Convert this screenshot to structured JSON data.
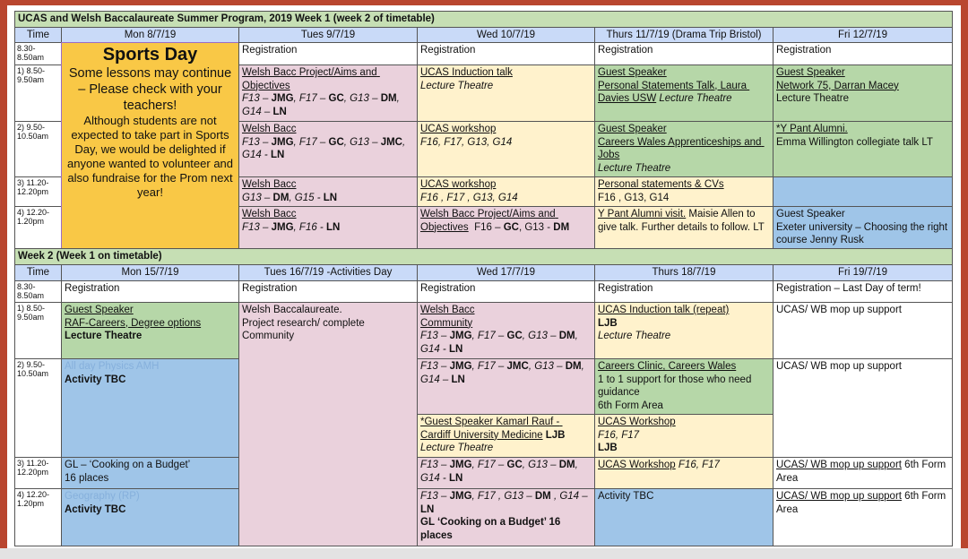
{
  "title": "UCAS and Welsh Baccalaureate Summer Program, 2019 Week 1 (week 2 of timetable)",
  "week1": {
    "headers": [
      "Time",
      "Mon 8/7/19",
      "Tues 9/7/19",
      "Wed 10/7/19",
      "Thurs 11/7/19 (Drama Trip Bristol)",
      "Fri 12/7/19"
    ],
    "times": [
      "8.30- 8.50am",
      "1) 8.50- 9.50am",
      "2) 9.50- 10.50am",
      "3) 11.20- 12.20pm",
      "4) 12.20- 1.20pm"
    ],
    "cells": {
      "mon": [
        "Sports Day",
        "Some lessons may continue – Please check with your teachers!",
        "Although students are not expected to take part in Sports Day, we would be delighted if anyone wanted to volunteer and also fundraise for the Prom next year!"
      ],
      "tue0": [
        "Registration"
      ],
      "wed0": [
        "Registration"
      ],
      "thu0": [
        "Registration"
      ],
      "fri0": [
        "Registration"
      ],
      "tue1": [
        "Welsh Bacc Project/Aims and Objectives",
        [
          "F13 – ",
          "JMG",
          ", F17 – ",
          "GC",
          ", G13 – ",
          "DM",
          ", G14 – ",
          "LN"
        ]
      ],
      "wed1": [
        "UCAS Induction talk",
        "Lecture Theatre"
      ],
      "thu1": [
        "Guest Speaker",
        [
          "Personal Statements Talk, Laura Davies USW",
          " Lecture Theatre"
        ]
      ],
      "fri1": [
        "Guest Speaker",
        "Network 75, Darran Macey",
        "Lecture Theatre"
      ],
      "tue2": [
        "Welsh Bacc",
        [
          "F13 – ",
          "JMG",
          ", F17 – ",
          "GC",
          ", G13 – ",
          "JMC",
          ", G14 - ",
          "LN"
        ]
      ],
      "wed2": [
        "UCAS workshop",
        "F16, F17, G13, G14"
      ],
      "thu2": [
        "Guest Speaker",
        "Careers Wales Apprenticeships and Jobs",
        "Lecture Theatre"
      ],
      "fri2": [
        "*Y Pant Alumni.",
        "Emma Willington collegiate talk LT"
      ],
      "tue3": [
        "Welsh Bacc",
        [
          "G13 – ",
          "DM",
          ", G15 - ",
          "LN"
        ]
      ],
      "wed3": [
        "UCAS workshop",
        "F16 , F17 , G13, G14"
      ],
      "thu3": [
        "Personal statements & CVs",
        "F16 , G13, G14"
      ],
      "tue4": [
        "Welsh Bacc",
        [
          "F13 – ",
          "JMG",
          ", F16 - ",
          "LN"
        ]
      ],
      "wed4": [
        [
          "Welsh Bacc Project/Aims and Objectives",
          "  F16 – ",
          "GC",
          ", G13 - ",
          "DM"
        ]
      ],
      "thu4": [
        [
          "Y Pant Alumni visit.",
          " Maisie Allen to give talk. Further details to follow. LT"
        ]
      ],
      "fri4": [
        "Guest Speaker",
        "Exeter university – Choosing the right course Jenny Rusk"
      ]
    }
  },
  "week2": {
    "title": "Week 2 (Week 1 on timetable)",
    "headers": [
      "Time",
      "Mon 15/7/19",
      "Tues 16/7/19 -Activities Day",
      "Wed 17/7/19",
      "Thurs 18/7/19",
      "Fri 19/7/19"
    ],
    "times": [
      "8.30- 8.50am",
      "1) 8.50- 9.50am",
      "2) 9.50- 10.50am",
      "3) 11.20- 12.20pm",
      "4) 12.20- 1.20pm"
    ],
    "cells": {
      "mon0": [
        "Registration"
      ],
      "tue0": [
        "Registration"
      ],
      "wed0": [
        "Registration"
      ],
      "thu0": [
        "Registration"
      ],
      "fri0": [
        "Registration – Last Day of term!"
      ],
      "mon1": [
        "Guest Speaker",
        "RAF-Careers, Degree options",
        "Lecture Theatre"
      ],
      "tue": [
        "Welsh Baccalaureate.",
        "Project research/ complete Community"
      ],
      "wed1": [
        "Welsh Bacc",
        "Community",
        [
          "F13 – ",
          "JMG",
          ", F17 – ",
          "GC",
          ", G13 – ",
          "DM",
          ", G14 - ",
          "LN"
        ]
      ],
      "thu1": [
        "UCAS Induction talk (repeat)",
        "LJB",
        "Lecture Theatre"
      ],
      "fri1": [
        "UCAS/ WB mop up support"
      ],
      "mon2": [
        "All day Physics AMH",
        "Activity TBC"
      ],
      "wed2a": [
        [
          "F13 – ",
          "JMG",
          ", F17 – ",
          "JMC",
          ", G13 – ",
          "DM",
          ", G14 – ",
          "LN"
        ]
      ],
      "wed2b": [
        [
          "*Guest Speaker Kamarl Rauf - Cardiff University Medicine",
          " LJB"
        ],
        "Lecture Theatre"
      ],
      "thu2a": [
        "Careers Clinic, Careers Wales",
        "1 to 1 support for those who need guidance",
        "6th Form Area"
      ],
      "thu2b": [
        "UCAS Workshop",
        "F16, F17",
        "LJB"
      ],
      "fri2": [
        "UCAS/ WB mop up support"
      ],
      "mon3": [
        "GL – ‘Cooking on a Budget’",
        "16 places"
      ],
      "wed3": [
        [
          "F13 – ",
          "JMG",
          ", F17 – ",
          "GC",
          ", G13 – ",
          "DM",
          ", G14 - ",
          "LN"
        ]
      ],
      "thu3": [
        [
          "UCAS Workshop",
          " F16, F17"
        ]
      ],
      "fri3": [
        [
          "UCAS/ WB mop up support",
          " 6th Form Area"
        ]
      ],
      "mon4": [
        "Geography (RP)",
        "Activity TBC"
      ],
      "wed4": [
        [
          "F13 – ",
          "JMG",
          ", F17 , G13 – ",
          "DM",
          " , G14 – ",
          "LN"
        ],
        "GL ‘Cooking on a Budget’ 16 places"
      ],
      "thu4": [
        "Activity TBC"
      ],
      "fri4": [
        [
          "UCAS/ WB mop up support",
          " 6th Form Area"
        ]
      ]
    }
  }
}
